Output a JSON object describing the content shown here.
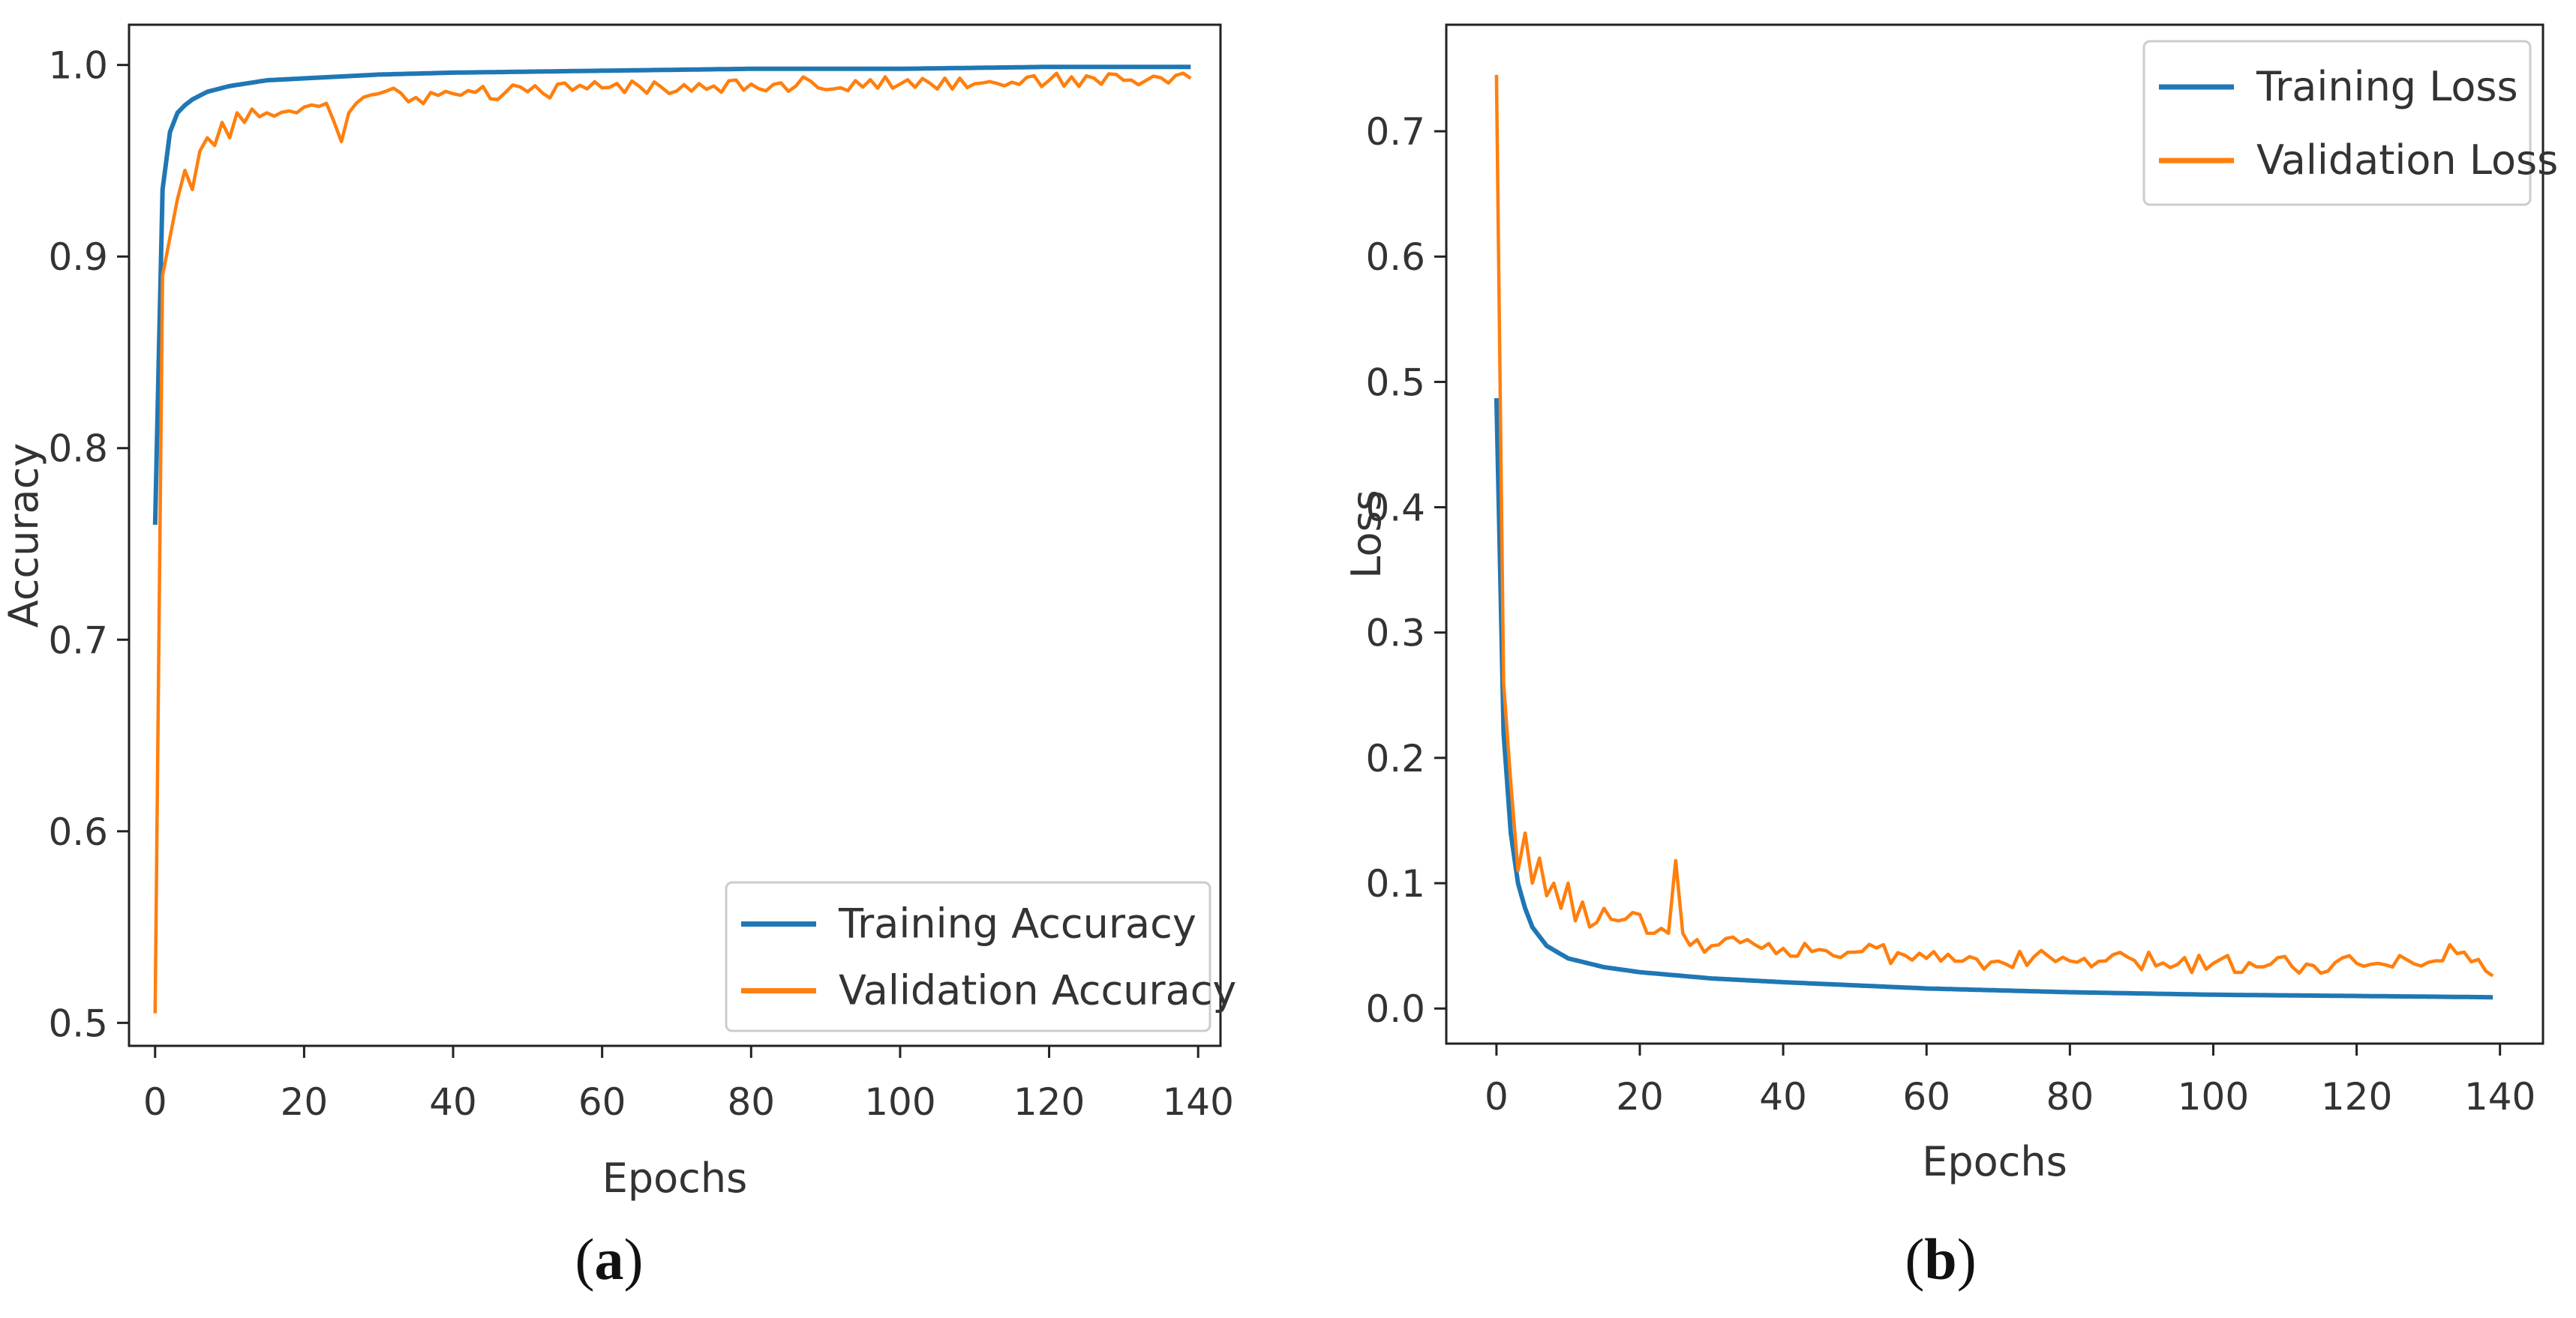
{
  "captions": {
    "a_open": "(",
    "a_letter": "a",
    "a_close": ")",
    "b_open": "(",
    "b_letter": "b",
    "b_close": ")"
  },
  "chart_data": [
    {
      "id": "accuracy",
      "type": "line",
      "title": "",
      "xlabel": "Epochs",
      "ylabel": "Accuracy",
      "xlim": [
        -3.5,
        143
      ],
      "ylim": [
        0.488,
        1.021
      ],
      "xticks": [
        0,
        20,
        40,
        60,
        80,
        100,
        120,
        140
      ],
      "yticks": [
        0.5,
        0.6,
        0.7,
        0.8,
        0.9,
        1.0
      ],
      "ytick_labels": [
        "0.5",
        "0.6",
        "0.7",
        "0.8",
        "0.9",
        "1.0"
      ],
      "grid": false,
      "legend_position": "lower-right",
      "series": [
        {
          "name": "Training Accuracy",
          "color": "#1f77b4",
          "kind": "train",
          "x_points": [
            0,
            1,
            2,
            3,
            4,
            5,
            7,
            10,
            15,
            20,
            30,
            40,
            60,
            80,
            100,
            120,
            139
          ],
          "y_points": [
            0.76,
            0.935,
            0.965,
            0.975,
            0.979,
            0.982,
            0.986,
            0.989,
            0.992,
            0.993,
            0.995,
            0.996,
            0.997,
            0.998,
            0.998,
            0.999,
            0.999
          ]
        },
        {
          "name": "Validation Accuracy",
          "color": "#ff7f0e",
          "kind": "val",
          "x_points": [
            0,
            1,
            2,
            3,
            4,
            5,
            6,
            7,
            8,
            9,
            10,
            11,
            12,
            13,
            14,
            15,
            18,
            20,
            23,
            25,
            26,
            27,
            30,
            35,
            40,
            50,
            60,
            80,
            100,
            120,
            130,
            139
          ],
          "y_points": [
            0.505,
            0.89,
            0.91,
            0.93,
            0.945,
            0.935,
            0.955,
            0.962,
            0.958,
            0.97,
            0.962,
            0.975,
            0.97,
            0.977,
            0.973,
            0.975,
            0.976,
            0.978,
            0.98,
            0.96,
            0.975,
            0.98,
            0.985,
            0.983,
            0.985,
            0.986,
            0.988,
            0.99,
            0.99,
            0.992,
            0.992,
            0.993
          ],
          "noise": 0.004
        }
      ]
    },
    {
      "id": "loss",
      "type": "line",
      "title": "",
      "xlabel": "Epochs",
      "ylabel": "Loss",
      "xlim": [
        -7,
        146
      ],
      "ylim": [
        -0.028,
        0.785
      ],
      "xticks": [
        0,
        20,
        40,
        60,
        80,
        100,
        120,
        140
      ],
      "yticks": [
        0.0,
        0.1,
        0.2,
        0.3,
        0.4,
        0.5,
        0.6,
        0.7
      ],
      "ytick_labels": [
        "0.0",
        "0.1",
        "0.2",
        "0.3",
        "0.4",
        "0.5",
        "0.6",
        "0.7"
      ],
      "grid": false,
      "legend_position": "top-right",
      "series": [
        {
          "name": "Training Loss",
          "color": "#1f77b4",
          "kind": "train",
          "x_points": [
            0,
            1,
            2,
            3,
            4,
            5,
            7,
            10,
            15,
            20,
            30,
            40,
            60,
            80,
            100,
            120,
            139
          ],
          "y_points": [
            0.487,
            0.22,
            0.14,
            0.1,
            0.08,
            0.065,
            0.05,
            0.04,
            0.033,
            0.029,
            0.024,
            0.021,
            0.016,
            0.013,
            0.011,
            0.01,
            0.009
          ]
        },
        {
          "name": "Validation Loss",
          "color": "#ff7f0e",
          "kind": "val",
          "x_points": [
            0,
            1,
            2,
            3,
            4,
            5,
            6,
            7,
            8,
            9,
            10,
            11,
            12,
            13,
            15,
            17,
            20,
            22,
            24,
            25,
            26,
            28,
            30,
            35,
            40,
            50,
            60,
            80,
            100,
            120,
            135,
            139
          ],
          "y_points": [
            0.745,
            0.26,
            0.18,
            0.11,
            0.14,
            0.1,
            0.12,
            0.09,
            0.1,
            0.08,
            0.1,
            0.07,
            0.085,
            0.065,
            0.08,
            0.07,
            0.075,
            0.06,
            0.06,
            0.118,
            0.06,
            0.055,
            0.05,
            0.055,
            0.048,
            0.045,
            0.04,
            0.038,
            0.036,
            0.036,
            0.045,
            0.026
          ],
          "noise": 0.008
        }
      ]
    }
  ]
}
